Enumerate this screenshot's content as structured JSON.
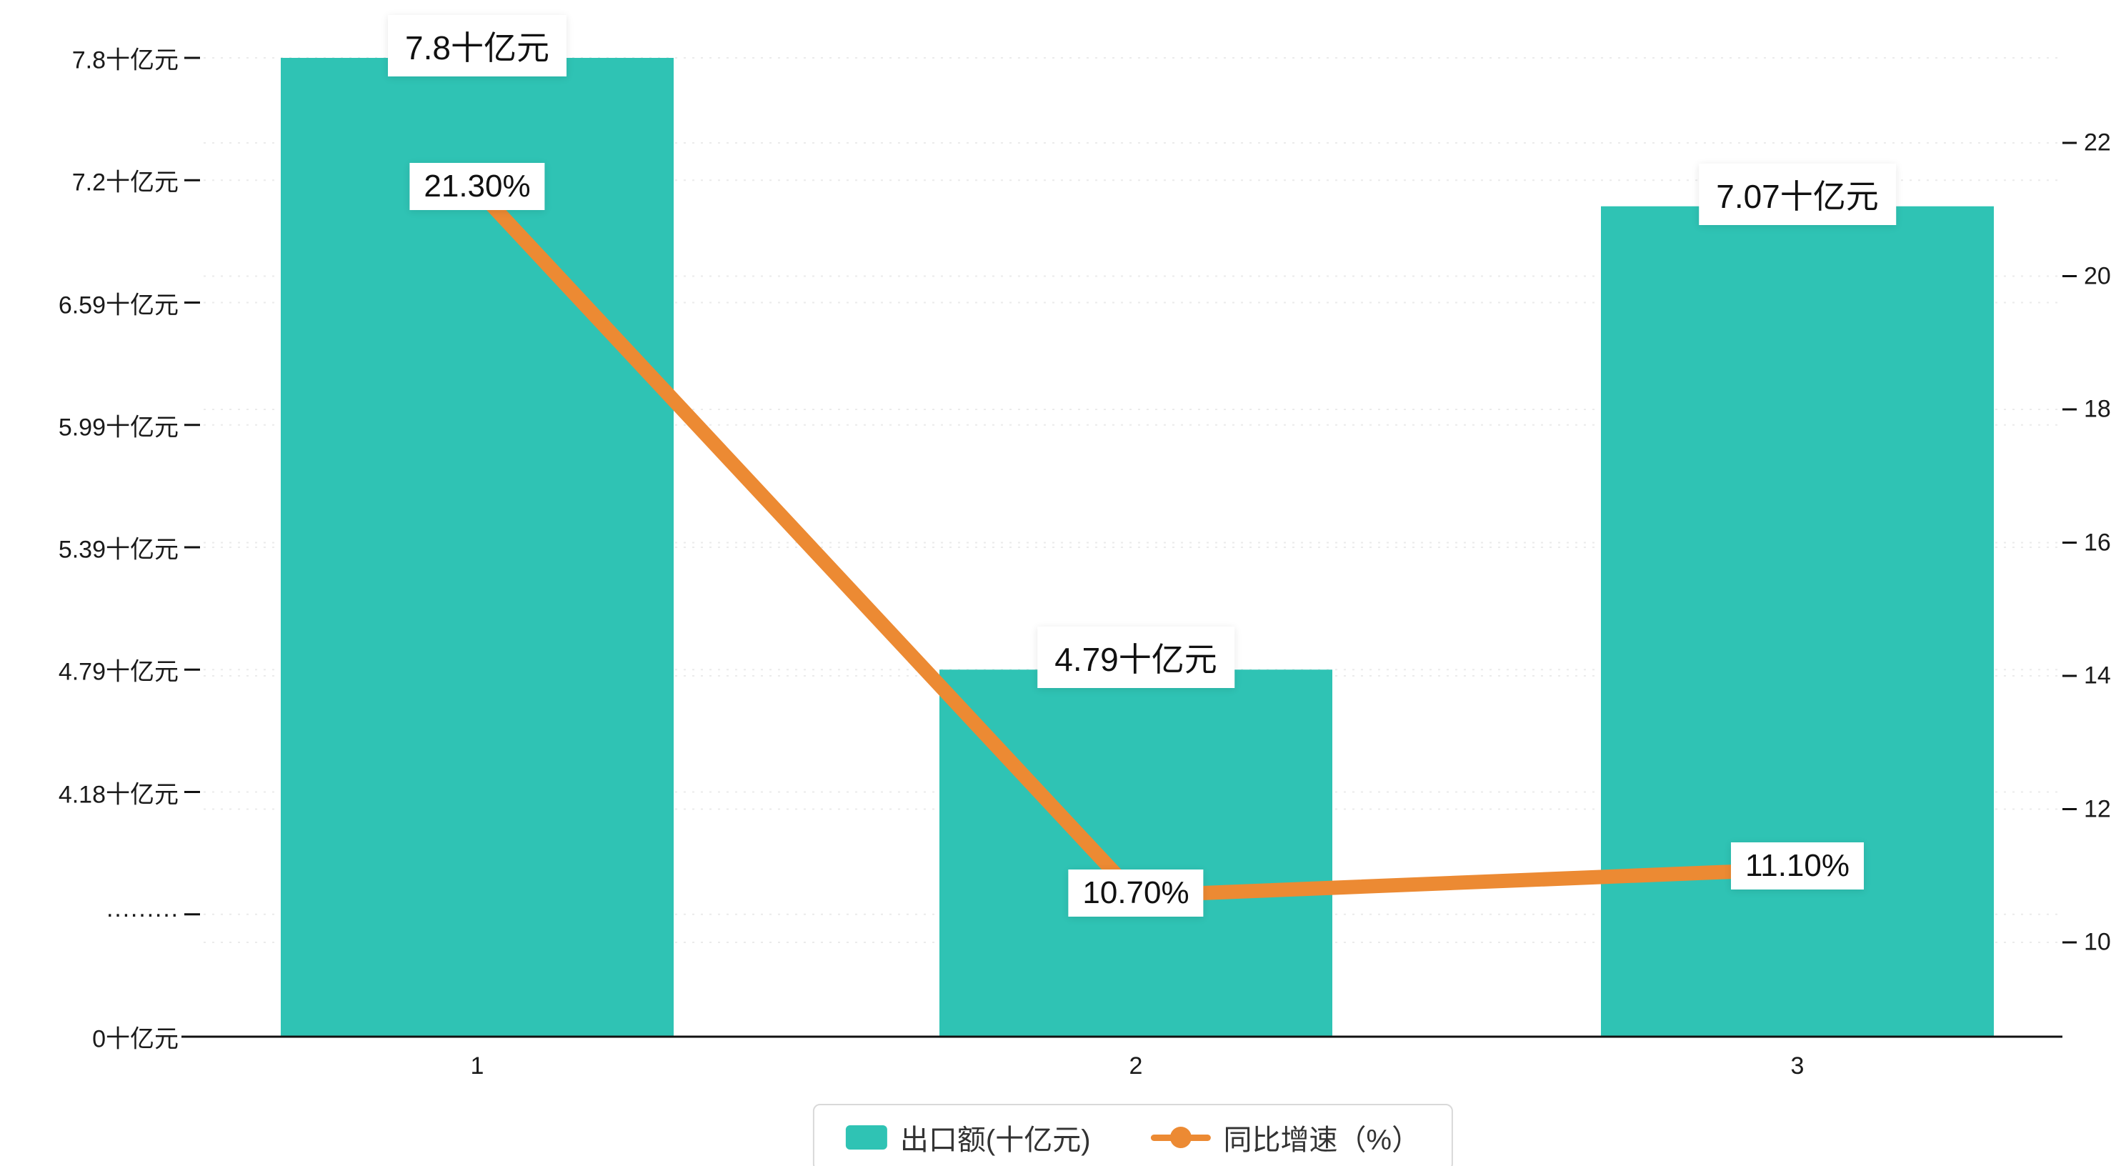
{
  "chart_data": {
    "type": "bar",
    "subtype": "bar+line combo, dual axis",
    "categories": [
      "1",
      "2",
      "3"
    ],
    "series": [
      {
        "name": "出口额(十亿元)",
        "type": "bar",
        "axis": "left",
        "values": [
          7.8,
          4.79,
          7.07
        ],
        "data_labels": [
          "7.8十亿元",
          "4.79十亿元",
          "7.07十亿元"
        ],
        "color": "#2fc3b4"
      },
      {
        "name": "同比增速（%）",
        "type": "line",
        "axis": "right",
        "values": [
          21.3,
          10.7,
          11.1
        ],
        "data_labels": [
          "21.30%",
          "10.70%",
          "11.10%"
        ],
        "color": "#ec8a33"
      }
    ],
    "left_axis": {
      "tick_labels": [
        "7.8十亿元",
        "7.2十亿元",
        "6.59十亿元",
        "5.99十亿元",
        "5.39十亿元",
        "4.79十亿元",
        "4.18十亿元",
        "·········",
        "0十亿元"
      ],
      "tick_values": [
        7.8,
        7.2,
        6.59,
        5.99,
        5.39,
        4.79,
        4.18,
        3.58,
        0
      ],
      "broken_axis": true
    },
    "right_axis": {
      "tick_labels": [
        "22",
        "20",
        "18",
        "16",
        "14",
        "12",
        "10"
      ],
      "tick_values": [
        22,
        20,
        18,
        16,
        14,
        12,
        10
      ],
      "range": [
        10,
        22
      ]
    },
    "grid": "dotted-horizontal",
    "legend_position": "bottom-center",
    "title": ""
  },
  "legend": {
    "items": [
      {
        "label": "出口额(十亿元)",
        "color": "#2fc3b4",
        "marker": "rect"
      },
      {
        "label": "同比增速（%）",
        "color": "#ec8a33",
        "marker": "line-dot"
      }
    ]
  },
  "colors": {
    "bar": "#2fc3b4",
    "line": "#ec8a33",
    "axis": "#111111",
    "grid": "#ebebeb",
    "label_bg": "#ffffff"
  }
}
